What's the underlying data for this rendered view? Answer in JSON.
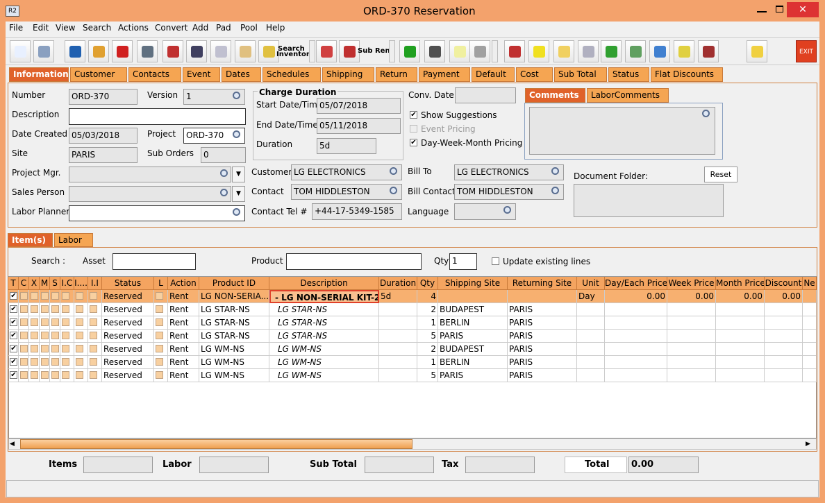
{
  "window": {
    "title": "ORD-370 Reservation",
    "icon": "R2"
  },
  "menu": [
    "File",
    "Edit",
    "View",
    "Search",
    "Actions",
    "Convert",
    "Add",
    "Pad",
    "Pool",
    "Help"
  ],
  "toolbar": {
    "search_inventory": [
      "Search",
      "Inventory"
    ],
    "sub_rent": "Sub Rent",
    "exit": "EXIT"
  },
  "tabs": [
    "Information",
    "Customer",
    "Contacts",
    "Event",
    "Dates",
    "Schedules",
    "Shipping",
    "Return",
    "Payment",
    "Default",
    "Cost",
    "Sub Total",
    "Status",
    "Flat Discounts"
  ],
  "information": {
    "fields": {
      "number": {
        "label": "Number",
        "value": "ORD-370"
      },
      "description": {
        "label": "Description"
      },
      "date_created": {
        "label": "Date Created",
        "value": "05/03/2018"
      },
      "site": {
        "label": "Site",
        "value": "PARIS"
      },
      "project_mgr": {
        "label": "Project Mgr."
      },
      "sales_person": {
        "label": "Sales Person"
      },
      "labor_planner": {
        "label": "Labor Planner"
      },
      "version": {
        "label": "Version",
        "value": "1"
      },
      "project": {
        "label": "Project",
        "value": "ORD-370"
      },
      "sub_orders": {
        "label": "Sub Orders",
        "value": "0"
      },
      "start": {
        "label": "Start Date/Time",
        "value": "05/07/2018"
      },
      "end": {
        "label": "End Date/Time",
        "value": "05/11/2018"
      },
      "duration": {
        "label": "Duration",
        "value": "5d"
      },
      "customer": {
        "label": "Customer",
        "value": "LG ELECTRONICS"
      },
      "contact": {
        "label": "Contact",
        "value": "TOM HIDDLESTON"
      },
      "contact_tel": {
        "label": "Contact Tel #",
        "value": "+44-17-5349-1585"
      },
      "conv_date": {
        "label": "Conv. Date"
      },
      "bill_to": {
        "label": "Bill To",
        "value": "LG ELECTRONICS"
      },
      "bill_contact": {
        "label": "Bill Contact",
        "value": "TOM HIDDLESTON"
      },
      "language": {
        "label": "Language"
      }
    },
    "charge_duration": "Charge Duration",
    "options": [
      {
        "label": "Show Suggestions",
        "checked": true,
        "disabled": false
      },
      {
        "label": "Event Pricing",
        "checked": false,
        "disabled": true
      },
      {
        "label": "Day-Week-Month Pricing",
        "checked": true,
        "disabled": false
      }
    ],
    "comment_tabs": [
      "Comments",
      "LaborComments"
    ],
    "document_folder": "Document Folder:",
    "reset": "Reset"
  },
  "item_tabs": [
    "Item(s)",
    "Labor"
  ],
  "search": {
    "title": "Search :",
    "asset": "Asset",
    "product": "Product",
    "qty": "Qty",
    "qty_value": "1",
    "update": "Update existing lines"
  },
  "grid": {
    "columns": [
      "T",
      "C",
      "X",
      "M",
      "S",
      "I.C",
      "I....",
      "I.I",
      "Status",
      "L",
      "Action",
      "Product ID",
      "Description",
      "Duration",
      "Qty",
      "Shipping Site",
      "Returning Site",
      "Unit",
      "Day/Each Price",
      "Week Price",
      "Month Price",
      "Discount",
      "Ne"
    ],
    "rows": [
      [
        "Reserved",
        "Rent",
        "LG NON-SERIA...",
        "- LG NON-SERIAL KIT-2",
        "5d",
        4,
        null,
        null,
        "Day",
        "0.00",
        "0.00",
        "0.00",
        "0.00"
      ],
      [
        "Reserved",
        "Rent",
        "LG STAR-NS",
        "LG STAR-NS",
        null,
        2,
        "BUDAPEST",
        "PARIS",
        null,
        null,
        null,
        null,
        null
      ],
      [
        "Reserved",
        "Rent",
        "LG STAR-NS",
        "LG STAR-NS",
        null,
        1,
        "BERLIN",
        "PARIS",
        null,
        null,
        null,
        null,
        null
      ],
      [
        "Reserved",
        "Rent",
        "LG STAR-NS",
        "LG STAR-NS",
        null,
        5,
        "PARIS",
        "PARIS",
        null,
        null,
        null,
        null,
        null
      ],
      [
        "Reserved",
        "Rent",
        "LG WM-NS",
        "LG WM-NS",
        null,
        2,
        "BUDAPEST",
        "PARIS",
        null,
        null,
        null,
        null,
        null
      ],
      [
        "Reserved",
        "Rent",
        "LG WM-NS",
        "LG WM-NS",
        null,
        1,
        "BERLIN",
        "PARIS",
        null,
        null,
        null,
        null,
        null
      ],
      [
        "Reserved",
        "Rent",
        "LG WM-NS",
        "LG WM-NS",
        null,
        5,
        "PARIS",
        "PARIS",
        null,
        null,
        null,
        null,
        null
      ]
    ]
  },
  "footer": {
    "fields": [
      "Items",
      "Labor",
      "Sub Total",
      "Tax"
    ],
    "total": {
      "label": "Total",
      "value": "0.00"
    }
  }
}
